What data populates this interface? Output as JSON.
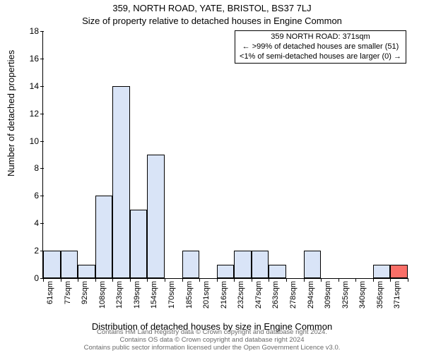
{
  "title": "359, NORTH ROAD, YATE, BRISTOL, BS37 7LJ",
  "subtitle": "Size of property relative to detached houses in Engine Common",
  "y_axis_label": "Number of detached properties",
  "x_axis_label": "Distribution of detached houses by size in Engine Common",
  "annotation": {
    "line1": "359 NORTH ROAD: 371sqm",
    "line2": "← >99% of detached houses are smaller (51)",
    "line3": "<1% of semi-detached houses are larger (0) →"
  },
  "footer": {
    "line1": "Contains HM Land Registry data © Crown copyright and database right 2024.",
    "line2": "Contains OS data © Crown copyright and database right 2024",
    "line3": "Contains public sector information licensed under the Open Government Licence v3.0."
  },
  "chart": {
    "type": "histogram",
    "background_color": "#ffffff",
    "axis_color": "#000000",
    "bar_fill": "#d9e4f7",
    "bar_border": "#000000",
    "highlight_fill": "#fa6f68",
    "bar_border_width": 1,
    "ylim": [
      0,
      18
    ],
    "ytick_step": 2,
    "label_fontsize": 13,
    "tick_fontsize": 11,
    "categories": [
      "61sqm",
      "77sqm",
      "92sqm",
      "108sqm",
      "123sqm",
      "139sqm",
      "154sqm",
      "170sqm",
      "185sqm",
      "201sqm",
      "216sqm",
      "232sqm",
      "247sqm",
      "263sqm",
      "278sqm",
      "294sqm",
      "309sqm",
      "325sqm",
      "340sqm",
      "356sqm",
      "371sqm"
    ],
    "values": [
      2,
      2,
      1,
      6,
      14,
      5,
      9,
      0,
      2,
      0,
      1,
      2,
      2,
      1,
      0,
      2,
      0,
      0,
      0,
      1,
      1
    ],
    "highlight_index": 20
  }
}
